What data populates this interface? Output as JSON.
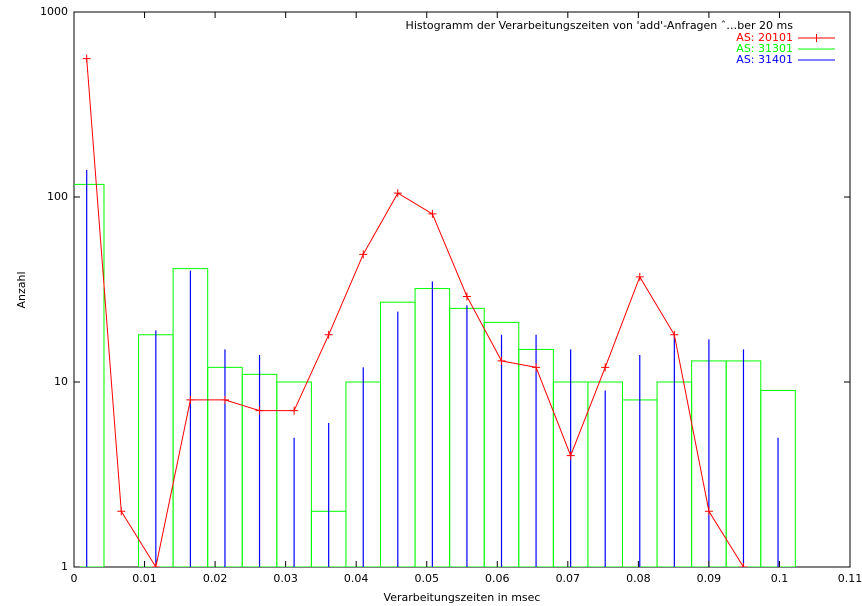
{
  "chart_data": {
    "type": "mixed",
    "title": "Histogramm der Verarbeitungszeiten von 'add'-Anfragen ˆ…ber 20 ms",
    "x_label": "Verarbeitungszeiten in msec",
    "y_label": "Anzahl",
    "x": [
      0.0018,
      0.0067,
      0.0116,
      0.0165,
      0.0214,
      0.0263,
      0.0312,
      0.0361,
      0.041,
      0.0459,
      0.0508,
      0.0557,
      0.0606,
      0.0655,
      0.0704,
      0.0753,
      0.0802,
      0.0851,
      0.09,
      0.0949,
      0.0998
    ],
    "series": [
      {
        "name": "AS: 20101",
        "color": "#ff0000",
        "style": "linespoints",
        "values": [
          560,
          2,
          1,
          8,
          8,
          7,
          7,
          18,
          49,
          105,
          81,
          29,
          13,
          12,
          4,
          12,
          37,
          18,
          2,
          1,
          null
        ]
      },
      {
        "name": "AS: 31301",
        "color": "#00ff00",
        "style": "boxes",
        "values": [
          117,
          1,
          18,
          41,
          12,
          11,
          10,
          2,
          10,
          27,
          32,
          25,
          21,
          15,
          10,
          10,
          8,
          10,
          13,
          13,
          9
        ]
      },
      {
        "name": "AS: 31401",
        "color": "#0000ff",
        "style": "impulses",
        "values": [
          140,
          1,
          19,
          40,
          15,
          14,
          5,
          6,
          12,
          24,
          35,
          26,
          18,
          18,
          15,
          9,
          14,
          18,
          17,
          15,
          5
        ]
      }
    ],
    "xlim": [
      0,
      0.11
    ],
    "xticks": [
      0,
      0.01,
      0.02,
      0.03,
      0.04,
      0.05,
      0.06,
      0.07,
      0.08,
      0.09,
      0.1,
      0.11
    ],
    "ylim": [
      1,
      1000
    ],
    "yticks": [
      1,
      10,
      100,
      1000
    ],
    "log_y": true,
    "legend": "top-right"
  }
}
